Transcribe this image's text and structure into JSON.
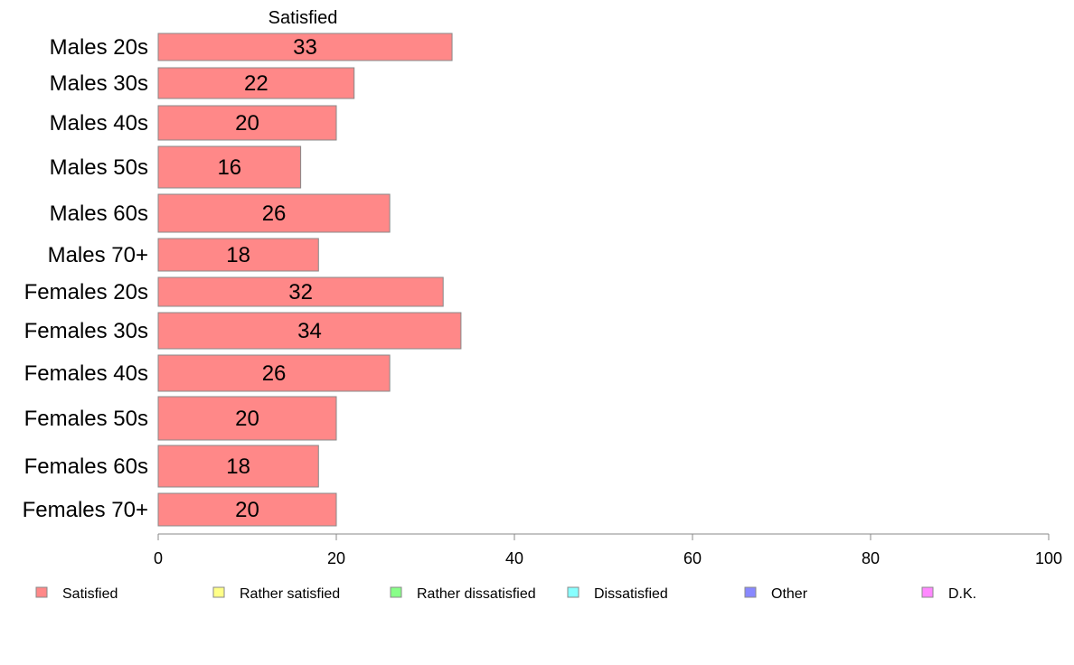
{
  "chart_data": {
    "type": "bar",
    "orientation": "horizontal",
    "column_title": "Satisfied",
    "categories": [
      "Males 20s",
      "Males 30s",
      "Males 40s",
      "Males 50s",
      "Males 60s",
      "Males 70+",
      "Females 20s",
      "Females 30s",
      "Females 40s",
      "Females 50s",
      "Females 60s",
      "Females 70+"
    ],
    "series": [
      {
        "name": "Satisfied",
        "color": "#ff8888",
        "values": [
          33,
          22,
          20,
          16,
          26,
          18,
          32,
          34,
          26,
          20,
          18,
          20
        ]
      }
    ],
    "xlim": [
      0,
      100
    ],
    "xticks": [
      "0",
      "20",
      "40",
      "60",
      "80",
      "100"
    ],
    "legend": {
      "placement": "bottom",
      "items": [
        {
          "label": "Satisfied",
          "color": "#ff8888"
        },
        {
          "label": "Rather satisfied",
          "color": "#ffff88"
        },
        {
          "label": "Rather dissatisfied",
          "color": "#88ff88"
        },
        {
          "label": "Dissatisfied",
          "color": "#88ffff"
        },
        {
          "label": "Other",
          "color": "#8888ff"
        },
        {
          "label": "D.K.",
          "color": "#ff88ff"
        }
      ]
    },
    "grid": false
  }
}
